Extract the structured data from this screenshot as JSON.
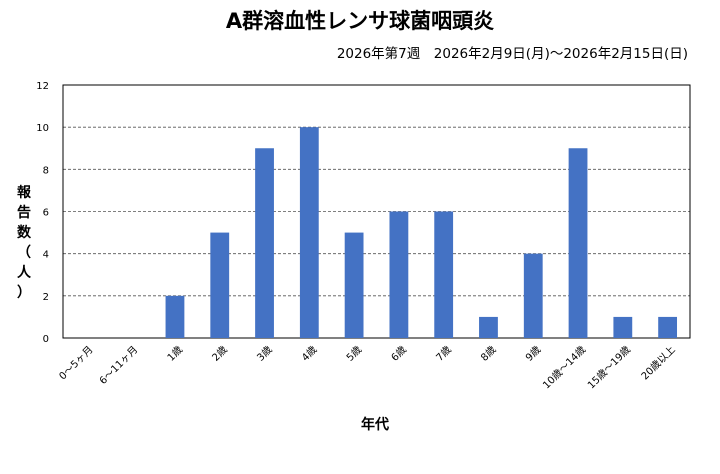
{
  "chart_data": {
    "type": "bar",
    "title": "A群溶血性レンサ球菌咽頭炎",
    "subtitle": "2026年第7週　2026年2月9日(月)～2026年2月15日(日)",
    "xlabel": "年代",
    "ylabel": "報告数（人）",
    "ylabel_chars": [
      "報",
      "告",
      "数",
      "（",
      "人",
      "）"
    ],
    "categories": [
      "0～5ヶ月",
      "6～11ヶ月",
      "1歳",
      "2歳",
      "3歳",
      "4歳",
      "5歳",
      "6歳",
      "7歳",
      "8歳",
      "9歳",
      "10歳～14歳",
      "15歳～19歳",
      "20歳以上"
    ],
    "values": [
      0,
      0,
      2,
      5,
      9,
      10,
      5,
      6,
      6,
      1,
      4,
      9,
      1,
      1
    ],
    "yticks": [
      0,
      2,
      4,
      6,
      8,
      10,
      12
    ],
    "ylim": [
      0,
      12
    ],
    "grid": "horizontal dashed",
    "legend": "none",
    "bar_color": "#4472C4"
  }
}
